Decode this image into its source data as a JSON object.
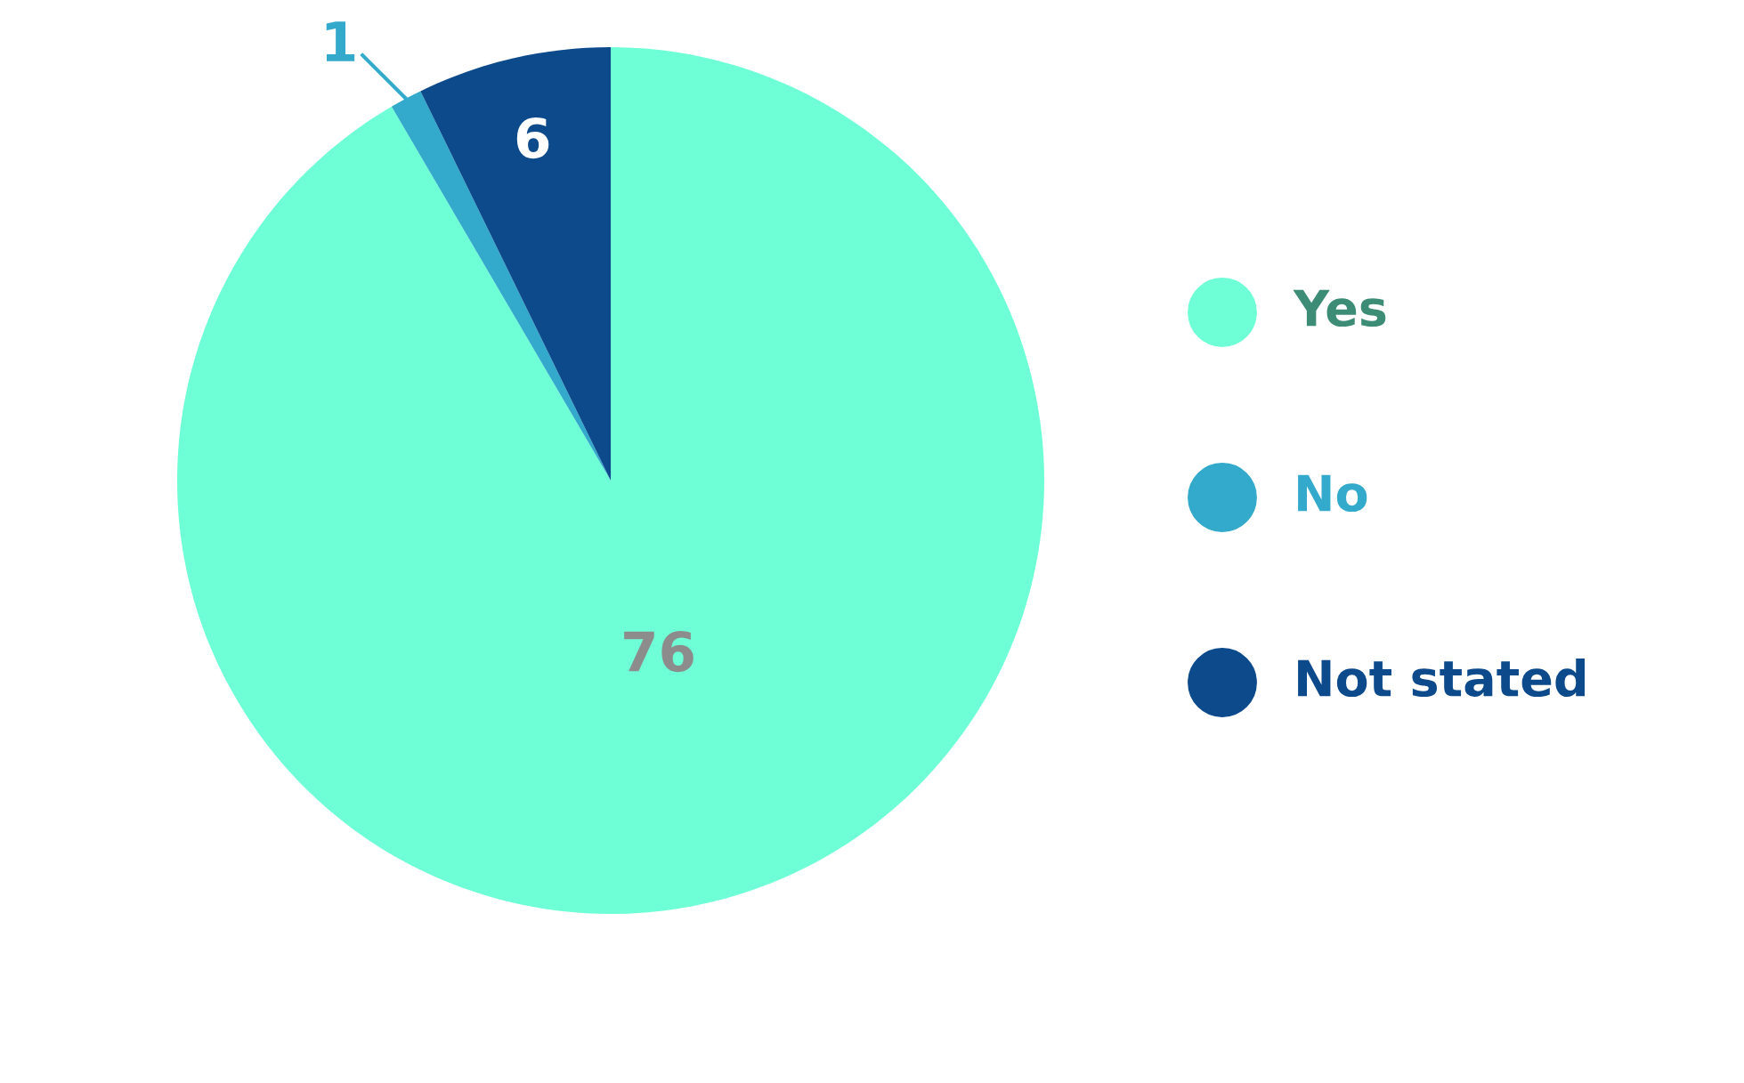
{
  "chart_data": {
    "type": "pie",
    "categories": [
      "Yes",
      "No",
      "Not stated"
    ],
    "values": [
      76,
      1,
      6
    ],
    "colors": [
      "#6fffd6",
      "#33aacc",
      "#0c4a8c"
    ],
    "data_labels": true,
    "legend": "right"
  }
}
